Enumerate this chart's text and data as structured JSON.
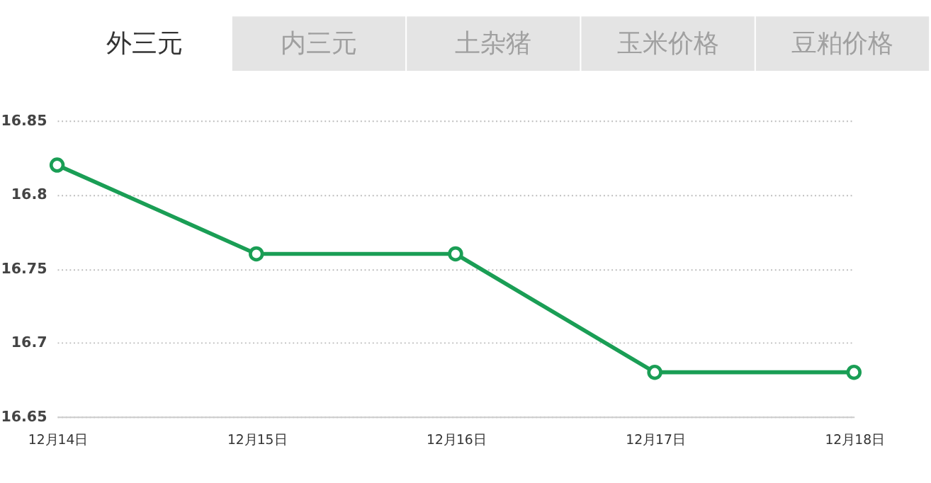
{
  "chart_data": {
    "type": "line",
    "title": "外三元",
    "annotations": [
      "内三元",
      "土杂猪",
      "玉米价格",
      "豆粕价格"
    ],
    "categories": [
      "12月14日",
      "12月15日",
      "12月16日",
      "12月17日",
      "12月18日"
    ],
    "series": [
      {
        "color": "#1a9e55",
        "values": [
          16.82,
          16.76,
          16.76,
          16.68,
          16.68
        ]
      }
    ],
    "ylim": [
      16.65,
      16.85
    ],
    "yticks": [
      16.65,
      16.7,
      16.75,
      16.8,
      16.85
    ],
    "grid": "y",
    "marker": "circle",
    "line_style": "solid"
  }
}
